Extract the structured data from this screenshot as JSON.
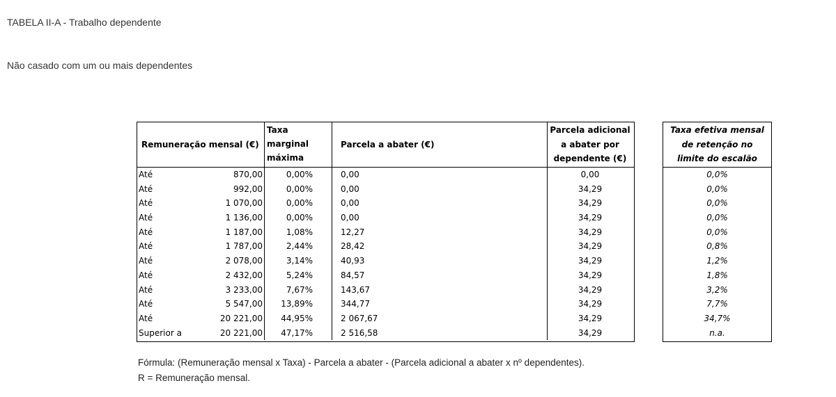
{
  "page": {
    "title": "TABELA II-A - Trabalho dependente",
    "subtitle": "Não casado com um ou mais dependentes"
  },
  "table": {
    "headers": {
      "remuneracao": "Remuneração mensal (€)",
      "taxa": [
        "Taxa",
        "marginal",
        "máxima"
      ],
      "parcela": "Parcela a abater (€)",
      "adicional": [
        "Parcela adicional",
        "a abater por",
        "dependente (€)"
      ]
    },
    "rows": [
      {
        "label": "Até",
        "value": "870,00",
        "taxa": "0,00%",
        "parcela": "0,00",
        "adicional": "0,00"
      },
      {
        "label": "Até",
        "value": "992,00",
        "taxa": "0,00%",
        "parcela": "0,00",
        "adicional": "34,29"
      },
      {
        "label": "Até",
        "value": "1 070,00",
        "taxa": "0,00%",
        "parcela": "0,00",
        "adicional": "34,29"
      },
      {
        "label": "Até",
        "value": "1 136,00",
        "taxa": "0,00%",
        "parcela": "0,00",
        "adicional": "34,29"
      },
      {
        "label": "Até",
        "value": "1 187,00",
        "taxa": "1,08%",
        "parcela": "12,27",
        "adicional": "34,29"
      },
      {
        "label": "Até",
        "value": "1 787,00",
        "taxa": "2,44%",
        "parcela": "28,42",
        "adicional": "34,29"
      },
      {
        "label": "Até",
        "value": "2 078,00",
        "taxa": "3,14%",
        "parcela": "40,93",
        "adicional": "34,29"
      },
      {
        "label": "Até",
        "value": "2 432,00",
        "taxa": "5,24%",
        "parcela": "84,57",
        "adicional": "34,29"
      },
      {
        "label": "Até",
        "value": "3 233,00",
        "taxa": "7,67%",
        "parcela": "143,67",
        "adicional": "34,29"
      },
      {
        "label": "Até",
        "value": "5 547,00",
        "taxa": "13,89%",
        "parcela": "344,77",
        "adicional": "34,29"
      },
      {
        "label": "Até",
        "value": "20 221,00",
        "taxa": "44,95%",
        "parcela": "2 067,67",
        "adicional": "34,29"
      },
      {
        "label": "Superior a",
        "value": "20 221,00",
        "taxa": "47,17%",
        "parcela": "2 516,58",
        "adicional": "34,29"
      }
    ]
  },
  "effective_table": {
    "header": [
      "Taxa efetiva mensal",
      "de retenção no",
      "limite do escalão"
    ],
    "values": [
      "0,0%",
      "0,0%",
      "0,0%",
      "0,0%",
      "0,0%",
      "0,8%",
      "1,2%",
      "1,8%",
      "3,2%",
      "7,7%",
      "34,7%",
      "n.a."
    ]
  },
  "footer": {
    "formula": "Fórmula: (Remuneração mensal x Taxa) - Parcela a abater - (Parcela adicional a abater x nº dependentes).",
    "legend": "R = Remuneração mensal."
  }
}
